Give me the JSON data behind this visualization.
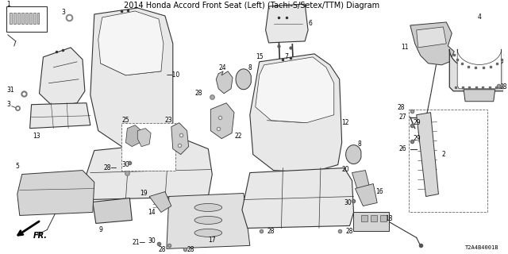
{
  "title": "2014 Honda Accord Front Seat (Left) (Tachi-S/Setex/TTM) Diagram",
  "bg_color": "#ffffff",
  "diagram_code": "T2A4B4001B",
  "fig_width": 6.4,
  "fig_height": 3.2,
  "dpi": 100,
  "line_color": "#333333",
  "text_color": "#000000",
  "label_fontsize": 5.5,
  "title_fontsize": 7.0,
  "fill_color": "#e8e8e8",
  "fill_color2": "#d0d0d0",
  "fill_dark": "#aaaaaa"
}
